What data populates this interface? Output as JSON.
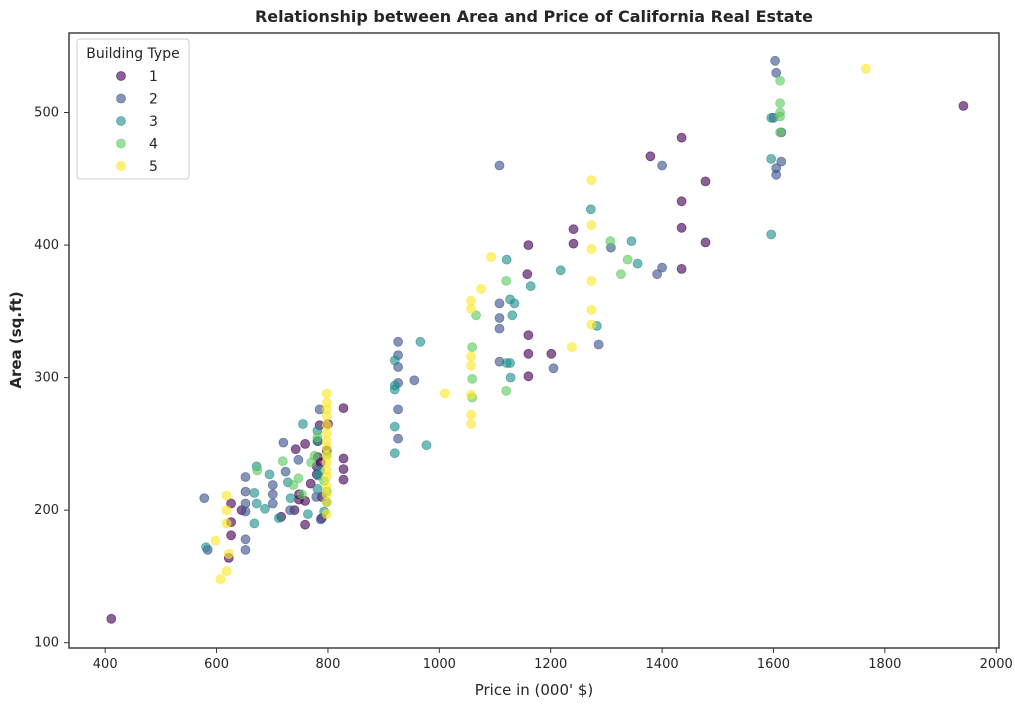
{
  "chart_data": {
    "type": "scatter",
    "title": "Relationship between Area and Price of California Real Estate",
    "xlabel": "Price in (000' $)",
    "ylabel": "Area (sq.ft)",
    "xlim": [
      335,
      2005
    ],
    "ylim": [
      96,
      560
    ],
    "x_ticks": [
      400,
      600,
      800,
      1000,
      1200,
      1400,
      1600,
      1800,
      2000
    ],
    "y_ticks": [
      100,
      200,
      300,
      400,
      500
    ],
    "grid": false,
    "legend": {
      "title": "Building Type",
      "placement": "top-left"
    },
    "series": [
      {
        "name": "1",
        "color": "#440154",
        "points": [
          [
            411,
            118
          ],
          [
            622,
            164
          ],
          [
            626,
            181
          ],
          [
            626,
            191
          ],
          [
            626,
            205
          ],
          [
            645,
            200
          ],
          [
            716,
            195
          ],
          [
            740,
            200
          ],
          [
            742,
            246
          ],
          [
            748,
            212
          ],
          [
            748,
            208
          ],
          [
            759,
            189
          ],
          [
            759,
            207
          ],
          [
            759,
            250
          ],
          [
            769,
            220
          ],
          [
            780,
            227
          ],
          [
            780,
            233
          ],
          [
            782,
            240
          ],
          [
            782,
            252
          ],
          [
            785,
            264
          ],
          [
            787,
            236
          ],
          [
            789,
            194
          ],
          [
            789,
            210
          ],
          [
            798,
            245
          ],
          [
            800,
            265
          ],
          [
            828,
            223
          ],
          [
            828,
            231
          ],
          [
            828,
            239
          ],
          [
            828,
            277
          ],
          [
            1158,
            378
          ],
          [
            1160,
            400
          ],
          [
            1160,
            332
          ],
          [
            1160,
            318
          ],
          [
            1160,
            301
          ],
          [
            1201,
            318
          ],
          [
            1241,
            412
          ],
          [
            1241,
            401
          ],
          [
            1379,
            467
          ],
          [
            1435,
            481
          ],
          [
            1435,
            433
          ],
          [
            1435,
            413
          ],
          [
            1435,
            382
          ],
          [
            1478,
            448
          ],
          [
            1478,
            402
          ],
          [
            1941,
            505
          ]
        ]
      },
      {
        "name": "2",
        "color": "#3b528b",
        "points": [
          [
            578,
            209
          ],
          [
            584,
            170
          ],
          [
            652,
            225
          ],
          [
            652,
            214
          ],
          [
            652,
            205
          ],
          [
            652,
            199
          ],
          [
            652,
            178
          ],
          [
            652,
            170
          ],
          [
            701,
            219
          ],
          [
            701,
            212
          ],
          [
            701,
            205
          ],
          [
            720,
            251
          ],
          [
            724,
            229
          ],
          [
            732,
            200
          ],
          [
            747,
            238
          ],
          [
            779,
            210
          ],
          [
            785,
            276
          ],
          [
            787,
            193
          ],
          [
            926,
            327
          ],
          [
            926,
            317
          ],
          [
            926,
            308
          ],
          [
            926,
            296
          ],
          [
            926,
            276
          ],
          [
            926,
            254
          ],
          [
            955,
            298
          ],
          [
            1108,
            460
          ],
          [
            1108,
            356
          ],
          [
            1108,
            345
          ],
          [
            1108,
            337
          ],
          [
            1108,
            312
          ],
          [
            1205,
            307
          ],
          [
            1286,
            325
          ],
          [
            1308,
            398
          ],
          [
            1391,
            378
          ],
          [
            1400,
            383
          ],
          [
            1400,
            460
          ],
          [
            1600,
            496
          ],
          [
            1603,
            539
          ],
          [
            1605,
            453
          ],
          [
            1605,
            458
          ],
          [
            1605,
            530
          ],
          [
            1614,
            485
          ],
          [
            1614,
            463
          ]
        ]
      },
      {
        "name": "3",
        "color": "#21908c",
        "points": [
          [
            581,
            172
          ],
          [
            668,
            190
          ],
          [
            668,
            213
          ],
          [
            672,
            233
          ],
          [
            672,
            205
          ],
          [
            687,
            201
          ],
          [
            695,
            227
          ],
          [
            712,
            194
          ],
          [
            728,
            221
          ],
          [
            733,
            209
          ],
          [
            755,
            265
          ],
          [
            764,
            197
          ],
          [
            781,
            252
          ],
          [
            781,
            260
          ],
          [
            781,
            216
          ],
          [
            782,
            226
          ],
          [
            786,
            230
          ],
          [
            793,
            199
          ],
          [
            798,
            206
          ],
          [
            920,
            313
          ],
          [
            920,
            294
          ],
          [
            920,
            291
          ],
          [
            920,
            263
          ],
          [
            920,
            243
          ],
          [
            966,
            327
          ],
          [
            977,
            249
          ],
          [
            1121,
            389
          ],
          [
            1121,
            311
          ],
          [
            1127,
            359
          ],
          [
            1127,
            311
          ],
          [
            1128,
            300
          ],
          [
            1131,
            347
          ],
          [
            1135,
            356
          ],
          [
            1164,
            369
          ],
          [
            1218,
            381
          ],
          [
            1272,
            427
          ],
          [
            1283,
            339
          ],
          [
            1345,
            403
          ],
          [
            1356,
            386
          ],
          [
            1596,
            496
          ],
          [
            1596,
            465
          ],
          [
            1596,
            408
          ]
        ]
      },
      {
        "name": "4",
        "color": "#5ec962",
        "points": [
          [
            673,
            230
          ],
          [
            719,
            237
          ],
          [
            738,
            219
          ],
          [
            747,
            224
          ],
          [
            753,
            212
          ],
          [
            770,
            236
          ],
          [
            776,
            241
          ],
          [
            781,
            255
          ],
          [
            793,
            222
          ],
          [
            798,
            242
          ],
          [
            798,
            214
          ],
          [
            1059,
            323
          ],
          [
            1059,
            299
          ],
          [
            1059,
            285
          ],
          [
            1066,
            347
          ],
          [
            1120,
            373
          ],
          [
            1120,
            290
          ],
          [
            1307,
            403
          ],
          [
            1326,
            378
          ],
          [
            1338,
            389
          ],
          [
            1612,
            524
          ],
          [
            1612,
            507
          ],
          [
            1612,
            500
          ],
          [
            1612,
            497
          ],
          [
            1612,
            485
          ]
        ]
      },
      {
        "name": "5",
        "color": "#fde725",
        "points": [
          [
            598,
            177
          ],
          [
            607,
            148
          ],
          [
            618,
            211
          ],
          [
            618,
            200
          ],
          [
            618,
            190
          ],
          [
            618,
            154
          ],
          [
            622,
            167
          ],
          [
            798,
            288
          ],
          [
            798,
            281
          ],
          [
            798,
            276
          ],
          [
            798,
            271
          ],
          [
            798,
            264
          ],
          [
            798,
            258
          ],
          [
            798,
            252
          ],
          [
            798,
            247
          ],
          [
            798,
            241
          ],
          [
            798,
            236
          ],
          [
            798,
            230
          ],
          [
            798,
            225
          ],
          [
            798,
            218
          ],
          [
            798,
            212
          ],
          [
            798,
            206
          ],
          [
            798,
            197
          ],
          [
            1010,
            288
          ],
          [
            1057,
            358
          ],
          [
            1057,
            352
          ],
          [
            1057,
            316
          ],
          [
            1057,
            309
          ],
          [
            1057,
            287
          ],
          [
            1057,
            272
          ],
          [
            1057,
            265
          ],
          [
            1075,
            367
          ],
          [
            1093,
            391
          ],
          [
            1238,
            323
          ],
          [
            1273,
            449
          ],
          [
            1273,
            415
          ],
          [
            1273,
            397
          ],
          [
            1273,
            373
          ],
          [
            1273,
            351
          ],
          [
            1273,
            340
          ],
          [
            1766,
            533
          ]
        ]
      }
    ]
  }
}
